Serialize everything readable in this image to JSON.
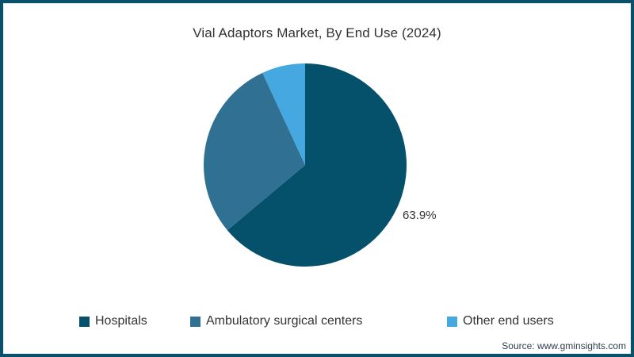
{
  "page": {
    "source": "Source: www.gminsights.com",
    "background": "#ffffff",
    "frame_border_color": "#0a506b",
    "text_color": "#333333"
  },
  "chart_data": {
    "type": "pie",
    "title": "Vial Adaptors Market, By End Use (2024)",
    "start_angle_deg": 0,
    "direction": "clockwise",
    "legend_position": "bottom",
    "slices": [
      {
        "label": "Hospitals",
        "value": 63.9,
        "data_label": "63.9%",
        "color": "#05506a"
      },
      {
        "label": "Ambulatory surgical centers",
        "value": 29.2,
        "data_label": "",
        "color": "#2f7093"
      },
      {
        "label": "Other end users",
        "value": 6.9,
        "data_label": "",
        "color": "#46a8e0"
      }
    ]
  }
}
